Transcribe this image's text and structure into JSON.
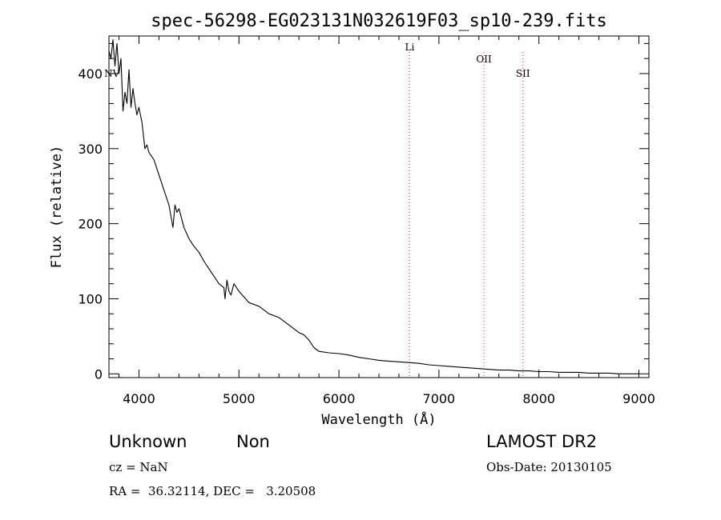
{
  "chart_data": {
    "type": "line",
    "title": "spec-56298-EG023131N032619F03_sp10-239.fits",
    "xlabel": "Wavelength (Å)",
    "ylabel": "Flux (relative)",
    "xlim": [
      3700,
      9100
    ],
    "ylim": [
      -5,
      450
    ],
    "x_ticks": [
      4000,
      5000,
      6000,
      7000,
      8000,
      9000
    ],
    "y_ticks": [
      0,
      100,
      200,
      300,
      400
    ],
    "grid": false,
    "line_color": "#000000",
    "marker_color": "#ff3333",
    "series": [
      {
        "x": [
          3700,
          3720,
          3740,
          3760,
          3780,
          3800,
          3820,
          3840,
          3860,
          3880,
          3900,
          3920,
          3940,
          3960,
          3980,
          4000,
          4030,
          4060,
          4080,
          4100,
          4150,
          4200,
          4250,
          4300,
          4340,
          4360,
          4380,
          4400,
          4450,
          4500,
          4550,
          4600,
          4650,
          4700,
          4750,
          4800,
          4850,
          4861,
          4880,
          4900,
          4920,
          4950,
          5000,
          5100,
          5200,
          5300,
          5400,
          5500,
          5600,
          5650,
          5700,
          5750,
          5800,
          5900,
          6000,
          6100,
          6200,
          6300,
          6400,
          6500,
          6600,
          6700,
          6800,
          6900,
          7000,
          7100,
          7200,
          7300,
          7400,
          7500,
          7600,
          7700,
          7800,
          7900,
          8000,
          8100,
          8200,
          8300,
          8400,
          8500,
          8600,
          8700,
          8800,
          8900,
          9000
        ],
        "y": [
          430,
          420,
          445,
          410,
          440,
          400,
          420,
          350,
          375,
          360,
          405,
          355,
          380,
          360,
          345,
          355,
          335,
          300,
          305,
          295,
          285,
          265,
          245,
          225,
          195,
          225,
          215,
          220,
          195,
          180,
          170,
          162,
          150,
          140,
          130,
          120,
          115,
          100,
          125,
          110,
          105,
          120,
          110,
          95,
          90,
          80,
          75,
          65,
          55,
          52,
          45,
          35,
          30,
          28,
          27,
          25,
          22,
          20,
          18,
          17,
          16,
          15,
          14,
          12,
          11,
          10,
          9,
          8,
          7,
          6,
          5,
          5,
          4,
          4,
          3,
          3,
          2,
          2,
          2,
          1,
          1,
          1,
          0,
          0,
          0
        ]
      }
    ],
    "lines": [
      {
        "label": "NV",
        "x": 3730
      },
      {
        "label": "Li",
        "x": 6708
      },
      {
        "label": "OII",
        "x": 7450
      },
      {
        "label": "SII",
        "x": 7840
      }
    ]
  },
  "info": {
    "class": "Unknown",
    "subclass": "Non",
    "survey": "LAMOST DR2",
    "cz": "cz = NaN",
    "obs_date": "Obs-Date: 20130105",
    "coords": "RA =  36.32114, DEC =   3.20508"
  }
}
